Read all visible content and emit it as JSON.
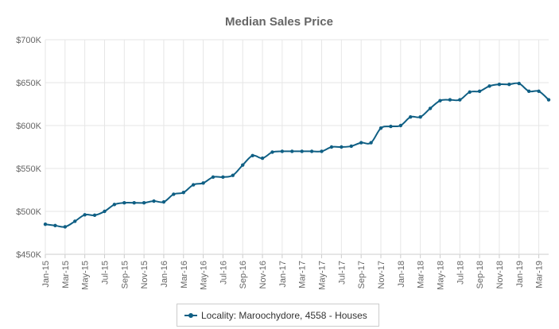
{
  "chart_data": {
    "type": "line",
    "title": "Median Sales Price",
    "xlabel": "",
    "ylabel": "",
    "ylim": [
      450000,
      700000
    ],
    "ytick_values": [
      450000,
      500000,
      550000,
      600000,
      650000,
      700000
    ],
    "ytick_labels": [
      "$450K",
      "$500K",
      "$550K",
      "$600K",
      "$650K",
      "$700K"
    ],
    "xtick_labels": [
      "Jan-15",
      "Mar-15",
      "May-15",
      "Jul-15",
      "Sep-15",
      "Nov-15",
      "Jan-16",
      "Mar-16",
      "May-16",
      "Jul-16",
      "Sep-16",
      "Nov-16",
      "Jan-17",
      "Mar-17",
      "May-17",
      "Jul-17",
      "Sep-17",
      "Nov-17",
      "Jan-18",
      "Mar-18",
      "May-18",
      "Jul-18",
      "Sep-18",
      "Nov-18",
      "Jan-19",
      "Mar-19"
    ],
    "grid": true,
    "legend_position": "bottom-center",
    "line_color": "#0f5f84",
    "x": [
      "Jan-15",
      "Feb-15",
      "Mar-15",
      "Apr-15",
      "May-15",
      "Jun-15",
      "Jul-15",
      "Aug-15",
      "Sep-15",
      "Oct-15",
      "Nov-15",
      "Dec-15",
      "Jan-16",
      "Feb-16",
      "Mar-16",
      "Apr-16",
      "May-16",
      "Jun-16",
      "Jul-16",
      "Aug-16",
      "Sep-16",
      "Oct-16",
      "Nov-16",
      "Dec-16",
      "Jan-17",
      "Feb-17",
      "Mar-17",
      "Apr-17",
      "May-17",
      "Jun-17",
      "Jul-17",
      "Aug-17",
      "Sep-17",
      "Oct-17",
      "Nov-17",
      "Dec-17",
      "Jan-18",
      "Feb-18",
      "Mar-18",
      "Apr-18",
      "May-18",
      "Jun-18",
      "Jul-18",
      "Aug-18",
      "Sep-18",
      "Oct-18",
      "Nov-18",
      "Dec-18",
      "Jan-19",
      "Feb-19",
      "Mar-19",
      "Apr-19"
    ],
    "series": [
      {
        "name": "Locality: Maroochydore, 4558 - Houses",
        "values": [
          485000,
          483500,
          482000,
          488500,
          496000,
          495500,
          500000,
          508000,
          510000,
          510000,
          510000,
          512000,
          511000,
          520000,
          522000,
          531000,
          533000,
          540000,
          540000,
          542000,
          554000,
          565000,
          562000,
          569000,
          570000,
          570000,
          570000,
          570000,
          570000,
          575000,
          575000,
          576000,
          580000,
          580000,
          597000,
          599000,
          600000,
          610000,
          610000,
          620000,
          629000,
          630000,
          630000,
          639000,
          640000,
          646000,
          648000,
          648000,
          649000,
          640000,
          640000,
          630000
        ]
      }
    ]
  }
}
